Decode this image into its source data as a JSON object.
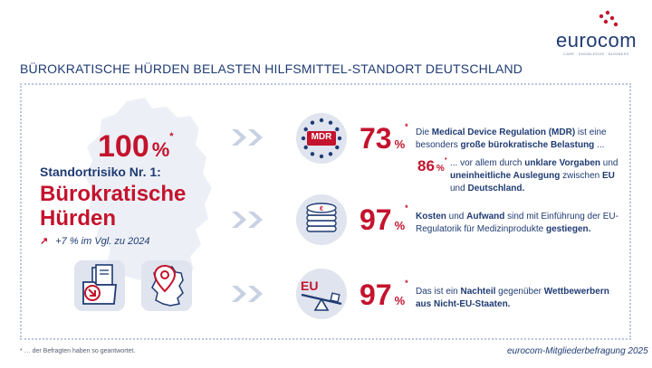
{
  "brand": {
    "name": "eurocom",
    "tagline": "CARE · KNOWLEDGE · BUSINESS",
    "colors": {
      "navy": "#1f3b73",
      "red": "#c4132d",
      "light": "#dfe4ee"
    }
  },
  "title": "BÜROKRATISCHE HÜRDEN BELASTEN HILFSMITTEL-STANDORT DEUTSCHLAND",
  "left": {
    "value": "100",
    "unit": "%",
    "asterisk": "*",
    "subtitle": "Standortrisiko Nr. 1:",
    "headline_line1": "Bürokratische",
    "headline_line2": "Hürden",
    "trend_arrow": "↗",
    "trend": "+7 % im Vgl. zu 2024",
    "icons": [
      "document-folder-icon",
      "germany-map-pin-icon"
    ]
  },
  "rows": [
    {
      "icon": "mdr-eu-stars-icon",
      "icon_label": "MDR",
      "value": "73",
      "unit": "%",
      "asterisk": "*",
      "text": [
        {
          "t": "Die ",
          "b": false
        },
        {
          "t": "Medical Device Regulation (MDR)",
          "b": true
        },
        {
          "t": " ist eine besonders ",
          "b": false
        },
        {
          "t": "große bürokratische Belastung",
          "b": true
        },
        {
          "t": " ...",
          "b": false
        }
      ],
      "sub": {
        "value": "86",
        "unit": "%",
        "asterisk": "*",
        "text": [
          {
            "t": "... vor allem durch ",
            "b": false
          },
          {
            "t": "unklare Vorgaben",
            "b": true
          },
          {
            "t": " und ",
            "b": false
          },
          {
            "t": "uneinheitliche Auslegung",
            "b": true
          },
          {
            "t": " zwischen ",
            "b": false
          },
          {
            "t": "EU",
            "b": true
          },
          {
            "t": " und ",
            "b": false
          },
          {
            "t": "Deutschland.",
            "b": true
          }
        ]
      }
    },
    {
      "icon": "euro-coins-stack-icon",
      "value": "97",
      "unit": "%",
      "asterisk": "*",
      "text": [
        {
          "t": "Kosten",
          "b": true
        },
        {
          "t": " und ",
          "b": false
        },
        {
          "t": "Aufwand",
          "b": true
        },
        {
          "t": " sind mit Einführung der EU-Regulatorik für Medizinprodukte ",
          "b": false
        },
        {
          "t": "gestiegen.",
          "b": true
        }
      ]
    },
    {
      "icon": "eu-seesaw-icon",
      "icon_label": "EU",
      "value": "97",
      "unit": "%",
      "asterisk": "*",
      "text": [
        {
          "t": "Das ist ein ",
          "b": false
        },
        {
          "t": "Nachteil",
          "b": true
        },
        {
          "t": " gegenüber ",
          "b": false
        },
        {
          "t": "Wettbewerbern aus Nicht-EU-Staaten.",
          "b": true
        }
      ]
    }
  ],
  "footnote": "* … der Befragten haben so geantwortet.",
  "source": "eurocom-Mitgliederbefragung 2025"
}
